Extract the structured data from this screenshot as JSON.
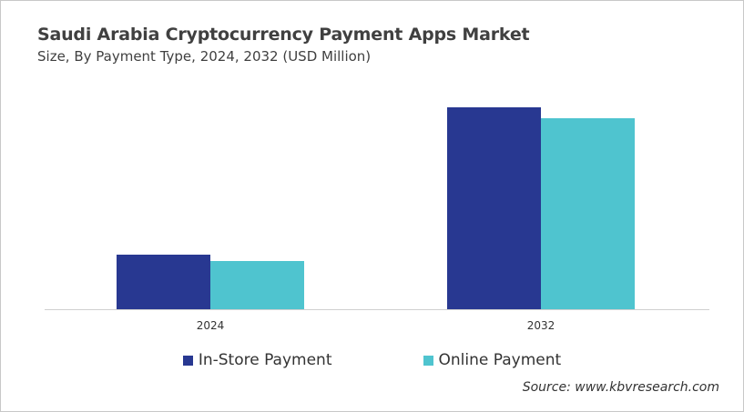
{
  "chart_data": {
    "type": "bar",
    "title": "Saudi Arabia Cryptocurrency Payment Apps Market",
    "subtitle": "Size, By Payment Type, 2024, 2032 (USD Million)",
    "categories": [
      "2024",
      "2032"
    ],
    "series": [
      {
        "name": "In-Store Payment",
        "color": "#283891",
        "values": [
          60,
          222
        ]
      },
      {
        "name": "Online Payment",
        "color": "#4fc4cf",
        "values": [
          53,
          210
        ]
      }
    ],
    "xlabel": "",
    "ylabel": "",
    "ylim": [
      0,
      222
    ],
    "y_axis_shown": false,
    "grid": false,
    "legend": "bottom",
    "source": "Source: www.kbvresearch.com"
  }
}
